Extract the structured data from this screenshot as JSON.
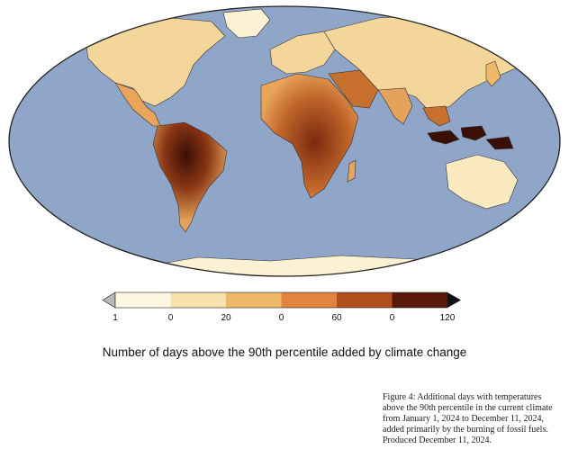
{
  "map": {
    "ocean_color": "#8fa6c9",
    "border_color": "#222222",
    "land_light": "#fdf1d4",
    "land_mid": "#efb869",
    "land_dark": "#a4481c",
    "land_darkest": "#3a0f06"
  },
  "legend": {
    "ticks": [
      "1",
      "0",
      "20",
      "0",
      "60",
      "0",
      "120"
    ],
    "colors": [
      "#fdf7e2",
      "#f7e2ac",
      "#efb869",
      "#e0843e",
      "#b0501f",
      "#5a1a0a"
    ],
    "under_color": "#b8b8b8",
    "over_color": "#111111",
    "title": "Number of days above the 90th percentile added by climate change"
  },
  "caption": {
    "lines": [
      "Figure 4: Additional days with temperatures",
      "above the 90th percentile in the current climate",
      "from January 1, 2024 to December 11, 2024,",
      "added primarily by the burning of fossil fuels.",
      "Produced December 11, 2024."
    ]
  }
}
